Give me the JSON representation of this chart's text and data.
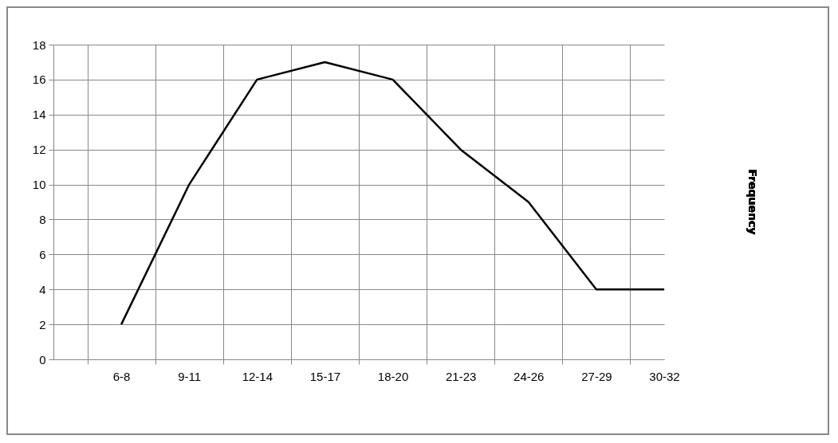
{
  "chart_data": {
    "type": "line",
    "categories": [
      "6-8",
      "9-11",
      "12-14",
      "15-17",
      "18-20",
      "21-23",
      "24-26",
      "27-29",
      "30-32"
    ],
    "series": [
      {
        "name": "Frequency",
        "color": "#000000",
        "values": [
          2,
          10,
          16,
          17,
          16,
          12,
          9,
          4,
          4
        ]
      }
    ],
    "ylim": [
      0,
      18
    ],
    "yticks": [
      0,
      2,
      4,
      6,
      8,
      10,
      12,
      14,
      16,
      18
    ],
    "grid": true,
    "legend": "right",
    "marker": "none",
    "line_style": "solid"
  }
}
